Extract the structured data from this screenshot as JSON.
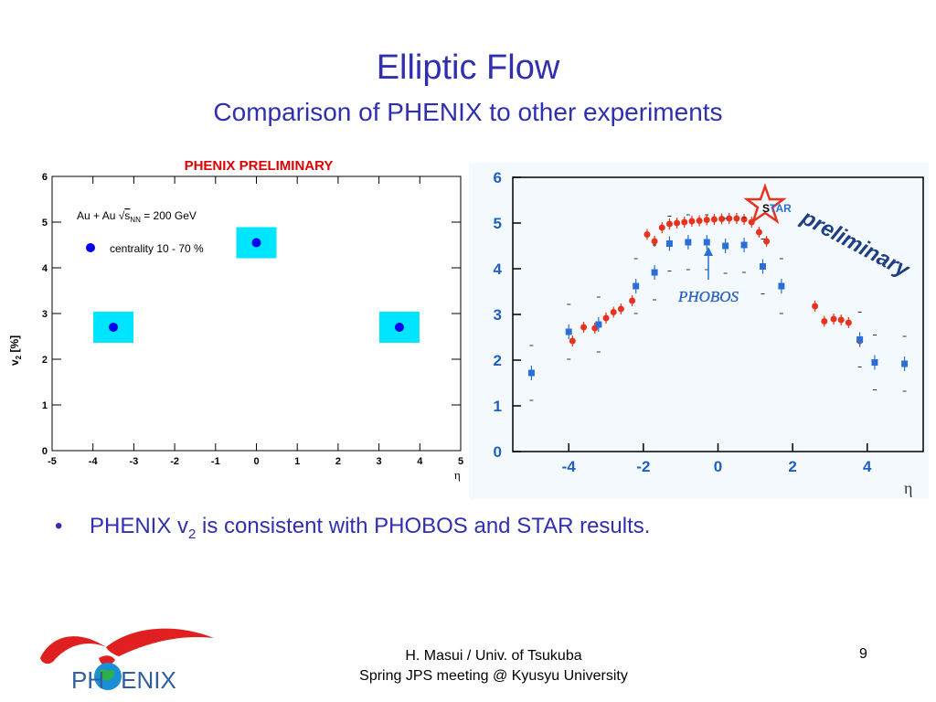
{
  "slide": {
    "title": "Elliptic Flow",
    "subtitle": "Comparison of PHENIX to other experiments",
    "bullet_pre": "PHENIX v",
    "bullet_sub": "2",
    "bullet_post": " is consistent with PHOBOS and STAR results.",
    "footer_line1": "H. Masui / Univ. of Tsukuba",
    "footer_line2": "Spring JPS meeting @ Kyusyu University",
    "page_number": "9",
    "logo_text_pre": "PH",
    "logo_text_post": "ENIX"
  },
  "chart_data": [
    {
      "type": "scatter",
      "title": "PHENIX PRELIMINARY",
      "xlabel": "η",
      "ylabel": "v",
      "ylabel_sub": "2",
      "ylabel_unit": " [%]",
      "xlim": [
        -5,
        5
      ],
      "ylim": [
        0,
        6
      ],
      "x_ticks": [
        -5,
        -4,
        -3,
        -2,
        -1,
        0,
        1,
        2,
        3,
        4,
        5
      ],
      "y_ticks": [
        0,
        1,
        2,
        3,
        4,
        5,
        6
      ],
      "annotation_pre": "Au + Au ",
      "annotation_sqrt": "s",
      "annotation_sub": "NN",
      "annotation_post": " = 200 GeV",
      "legend_label": "centrality 10 - 70 %",
      "colors": {
        "marker": "#0000ee",
        "syst_box": "#00e5ff",
        "title": "#dd0000"
      },
      "series": [
        {
          "points": [
            {
              "x": -3.5,
              "y": 2.7
            },
            {
              "x": 0.0,
              "y": 4.55
            },
            {
              "x": 3.5,
              "y": 2.7
            }
          ]
        }
      ]
    },
    {
      "type": "scatter",
      "xlabel": "η",
      "xlim": [
        -5.5,
        5.5
      ],
      "ylim": [
        0,
        6
      ],
      "x_ticks": [
        -4,
        -2,
        0,
        2,
        4
      ],
      "y_ticks": [
        0,
        1,
        2,
        3,
        4,
        5,
        6
      ],
      "star_label_s": "S",
      "star_label_rest": "TAR",
      "phobos_label": "PHOBOS",
      "preliminary_label": "preliminary",
      "colors": {
        "star": "#e8321e",
        "phobos": "#2b6fd6",
        "axis": "#1f5fbf",
        "background": "#f4f9fd"
      },
      "series": [
        {
          "color": "#e8321e",
          "points": [
            {
              "x": -3.9,
              "y": 2.42
            },
            {
              "x": -3.6,
              "y": 2.72
            },
            {
              "x": -3.3,
              "y": 2.7
            },
            {
              "x": -3.0,
              "y": 2.92
            },
            {
              "x": -2.8,
              "y": 3.05
            },
            {
              "x": -2.6,
              "y": 3.12
            },
            {
              "x": -2.3,
              "y": 3.3
            },
            {
              "x": -1.9,
              "y": 4.75
            },
            {
              "x": -1.7,
              "y": 4.6
            },
            {
              "x": -1.5,
              "y": 4.9
            },
            {
              "x": -1.3,
              "y": 4.98
            },
            {
              "x": -1.1,
              "y": 5.0
            },
            {
              "x": -0.9,
              "y": 5.02
            },
            {
              "x": -0.7,
              "y": 5.04
            },
            {
              "x": -0.5,
              "y": 5.05
            },
            {
              "x": -0.3,
              "y": 5.07
            },
            {
              "x": -0.1,
              "y": 5.08
            },
            {
              "x": 0.1,
              "y": 5.09
            },
            {
              "x": 0.3,
              "y": 5.1
            },
            {
              "x": 0.5,
              "y": 5.1
            },
            {
              "x": 0.7,
              "y": 5.08
            },
            {
              "x": 0.9,
              "y": 5.02
            },
            {
              "x": 1.1,
              "y": 4.8
            },
            {
              "x": 1.3,
              "y": 4.6
            },
            {
              "x": 2.6,
              "y": 3.18
            },
            {
              "x": 2.85,
              "y": 2.85
            },
            {
              "x": 3.1,
              "y": 2.9
            },
            {
              "x": 3.3,
              "y": 2.88
            },
            {
              "x": 3.5,
              "y": 2.82
            },
            {
              "x": 3.8,
              "y": 2.42
            }
          ]
        },
        {
          "color": "#2b6fd6",
          "points": [
            {
              "x": -5.0,
              "y": 1.72
            },
            {
              "x": -4.0,
              "y": 2.62
            },
            {
              "x": -3.2,
              "y": 2.78
            },
            {
              "x": -2.2,
              "y": 3.62
            },
            {
              "x": -1.7,
              "y": 3.92
            },
            {
              "x": -1.3,
              "y": 4.55
            },
            {
              "x": -0.8,
              "y": 4.58
            },
            {
              "x": -0.3,
              "y": 4.58
            },
            {
              "x": 0.2,
              "y": 4.5
            },
            {
              "x": 0.7,
              "y": 4.52
            },
            {
              "x": 1.2,
              "y": 4.05
            },
            {
              "x": 1.7,
              "y": 3.62
            },
            {
              "x": 3.8,
              "y": 2.45
            },
            {
              "x": 4.2,
              "y": 1.95
            },
            {
              "x": 5.0,
              "y": 1.92
            }
          ]
        }
      ]
    }
  ]
}
